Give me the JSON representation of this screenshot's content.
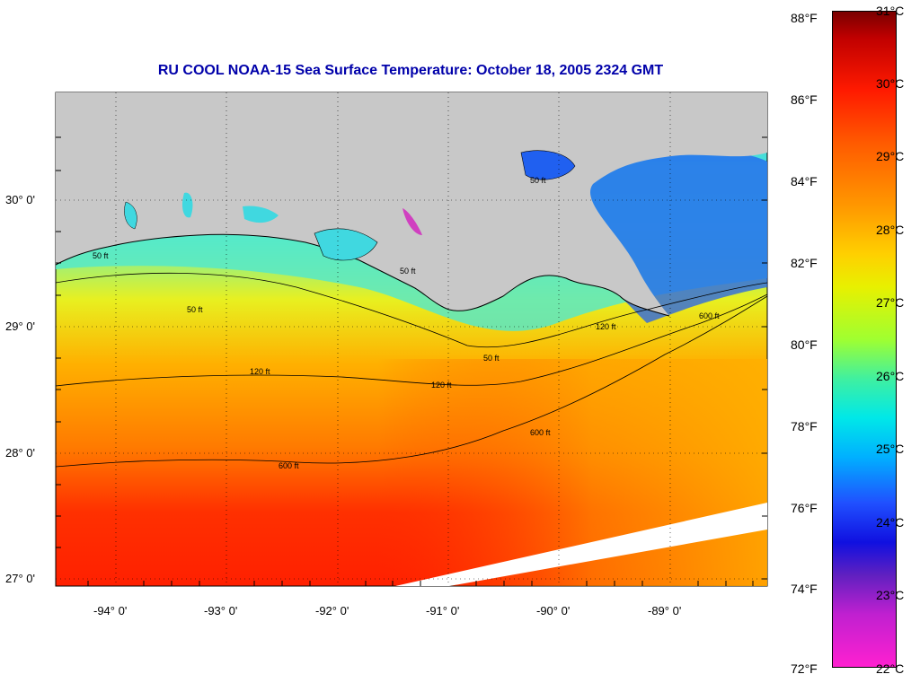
{
  "title": "RU COOL  NOAA-15  Sea Surface Temperature:  October 18, 2005 2324 GMT",
  "map": {
    "lat_labels": [
      "30° 0'",
      "29° 0'",
      "28° 0'",
      "27° 0'"
    ],
    "lon_labels": [
      "-94° 0'",
      "-93° 0'",
      "-92° 0'",
      "-91° 0'",
      "-90° 0'",
      "-89° 0'"
    ],
    "contour_labels": [
      "50 ft",
      "50 ft",
      "50 ft",
      "50 ft",
      "120 ft",
      "120 ft",
      "600 ft",
      "600 ft",
      "600 ft",
      "50 ft",
      "120 ft"
    ]
  },
  "colorbar": {
    "fahrenheit": [
      "88°F",
      "86°F",
      "84°F",
      "82°F",
      "80°F",
      "78°F",
      "76°F",
      "74°F",
      "72°F"
    ],
    "celsius": [
      "31°C",
      "30°C",
      "29°C",
      "28°C",
      "27°C",
      "26°C",
      "25°C",
      "24°C",
      "23°C",
      "22°C"
    ]
  },
  "colors": {
    "land": "#c8c8c8",
    "title": "#0000aa"
  }
}
